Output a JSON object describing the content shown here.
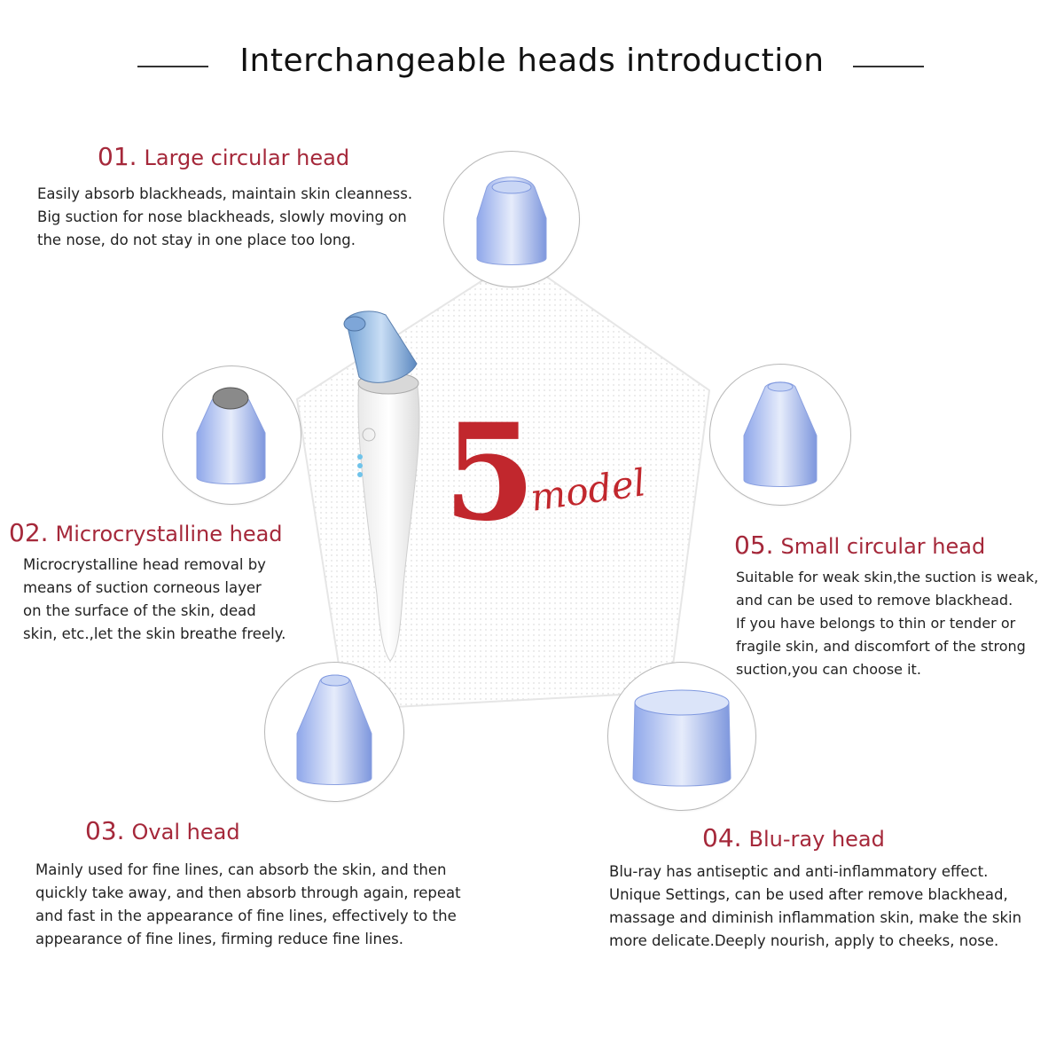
{
  "title": "Interchangeable heads introduction",
  "center": {
    "number": "5",
    "word": "model"
  },
  "heads": [
    {
      "num": "01.",
      "name": "Large circular head",
      "lines": [
        "Easily absorb blackheads, maintain skin cleanness.",
        "Big suction for nose blackheads, slowly moving on",
        "the nose, do not stay in one place too long."
      ]
    },
    {
      "num": "02.",
      "name": "Microcrystalline head",
      "lines": [
        "Microcrystalline head removal by",
        "means of suction corneous layer",
        "on the surface of the skin, dead",
        "skin, etc.,let the skin breathe freely."
      ]
    },
    {
      "num": "03.",
      "name": "Oval head",
      "lines": [
        "Mainly used for fine lines, can absorb the skin, and then",
        "quickly take away, and then absorb through again, repeat",
        "and fast in the appearance of fine lines, effectively to the",
        "appearance of fine lines, firming reduce fine lines."
      ]
    },
    {
      "num": "04.",
      "name": "Blu-ray head",
      "lines": [
        "Blu-ray has antiseptic and anti-inflammatory effect.",
        "Unique Settings, can be used after remove blackhead,",
        "massage and diminish inflammation skin, make the skin",
        "more delicate.Deeply nourish, apply to cheeks, nose."
      ]
    },
    {
      "num": "05.",
      "name": "Small circular head",
      "lines": [
        "Suitable for weak skin,the suction is weak,",
        "and can be used to remove blackhead.",
        "If you have belongs to thin or tender or",
        "fragile skin, and discomfort of the strong",
        "suction,you can choose it."
      ]
    }
  ],
  "colors": {
    "accent": "#a5283a",
    "model_red": "#c1272d",
    "head_blue": "#9fb4f0"
  }
}
